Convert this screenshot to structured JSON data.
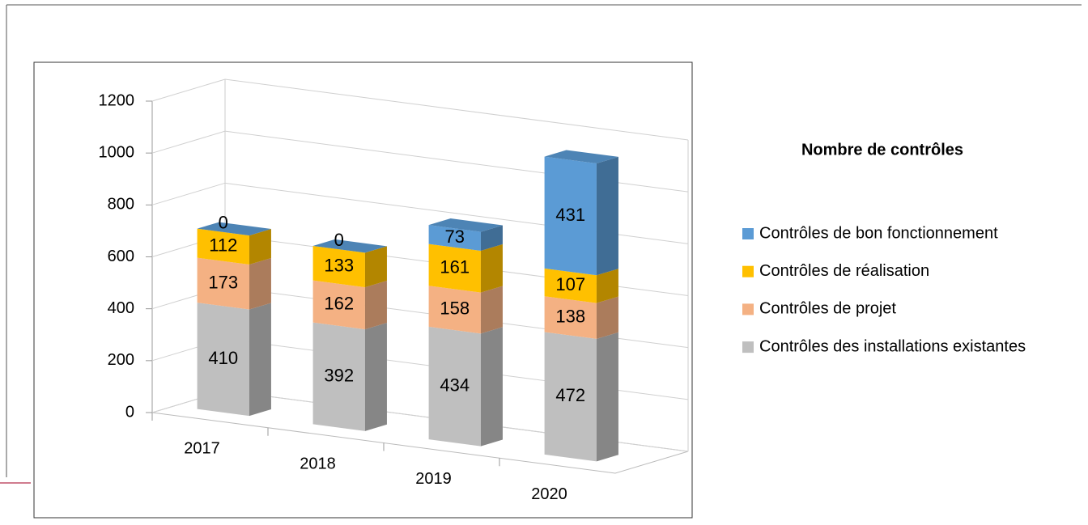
{
  "chart_data": {
    "type": "bar3d_stacked",
    "title": "Nombre de contrôles",
    "categories": [
      "2017",
      "2018",
      "2019",
      "2020"
    ],
    "series": [
      {
        "name": "Contrôles des installations existantes",
        "color": "#bfbfbf",
        "values": [
          410,
          392,
          434,
          472
        ]
      },
      {
        "name": "Contrôles de projet",
        "color": "#f4b183",
        "values": [
          173,
          162,
          158,
          138
        ]
      },
      {
        "name": "Contrôles de réalisation",
        "color": "#ffc000",
        "values": [
          112,
          133,
          161,
          107
        ]
      },
      {
        "name": "Contrôles de bon fonctionnement",
        "color": "#5b9bd5",
        "values": [
          0,
          0,
          73,
          431
        ]
      }
    ],
    "ylim": [
      0,
      1200
    ],
    "yticks": [
      0,
      200,
      400,
      600,
      800,
      1000,
      1200
    ],
    "grid": true
  }
}
